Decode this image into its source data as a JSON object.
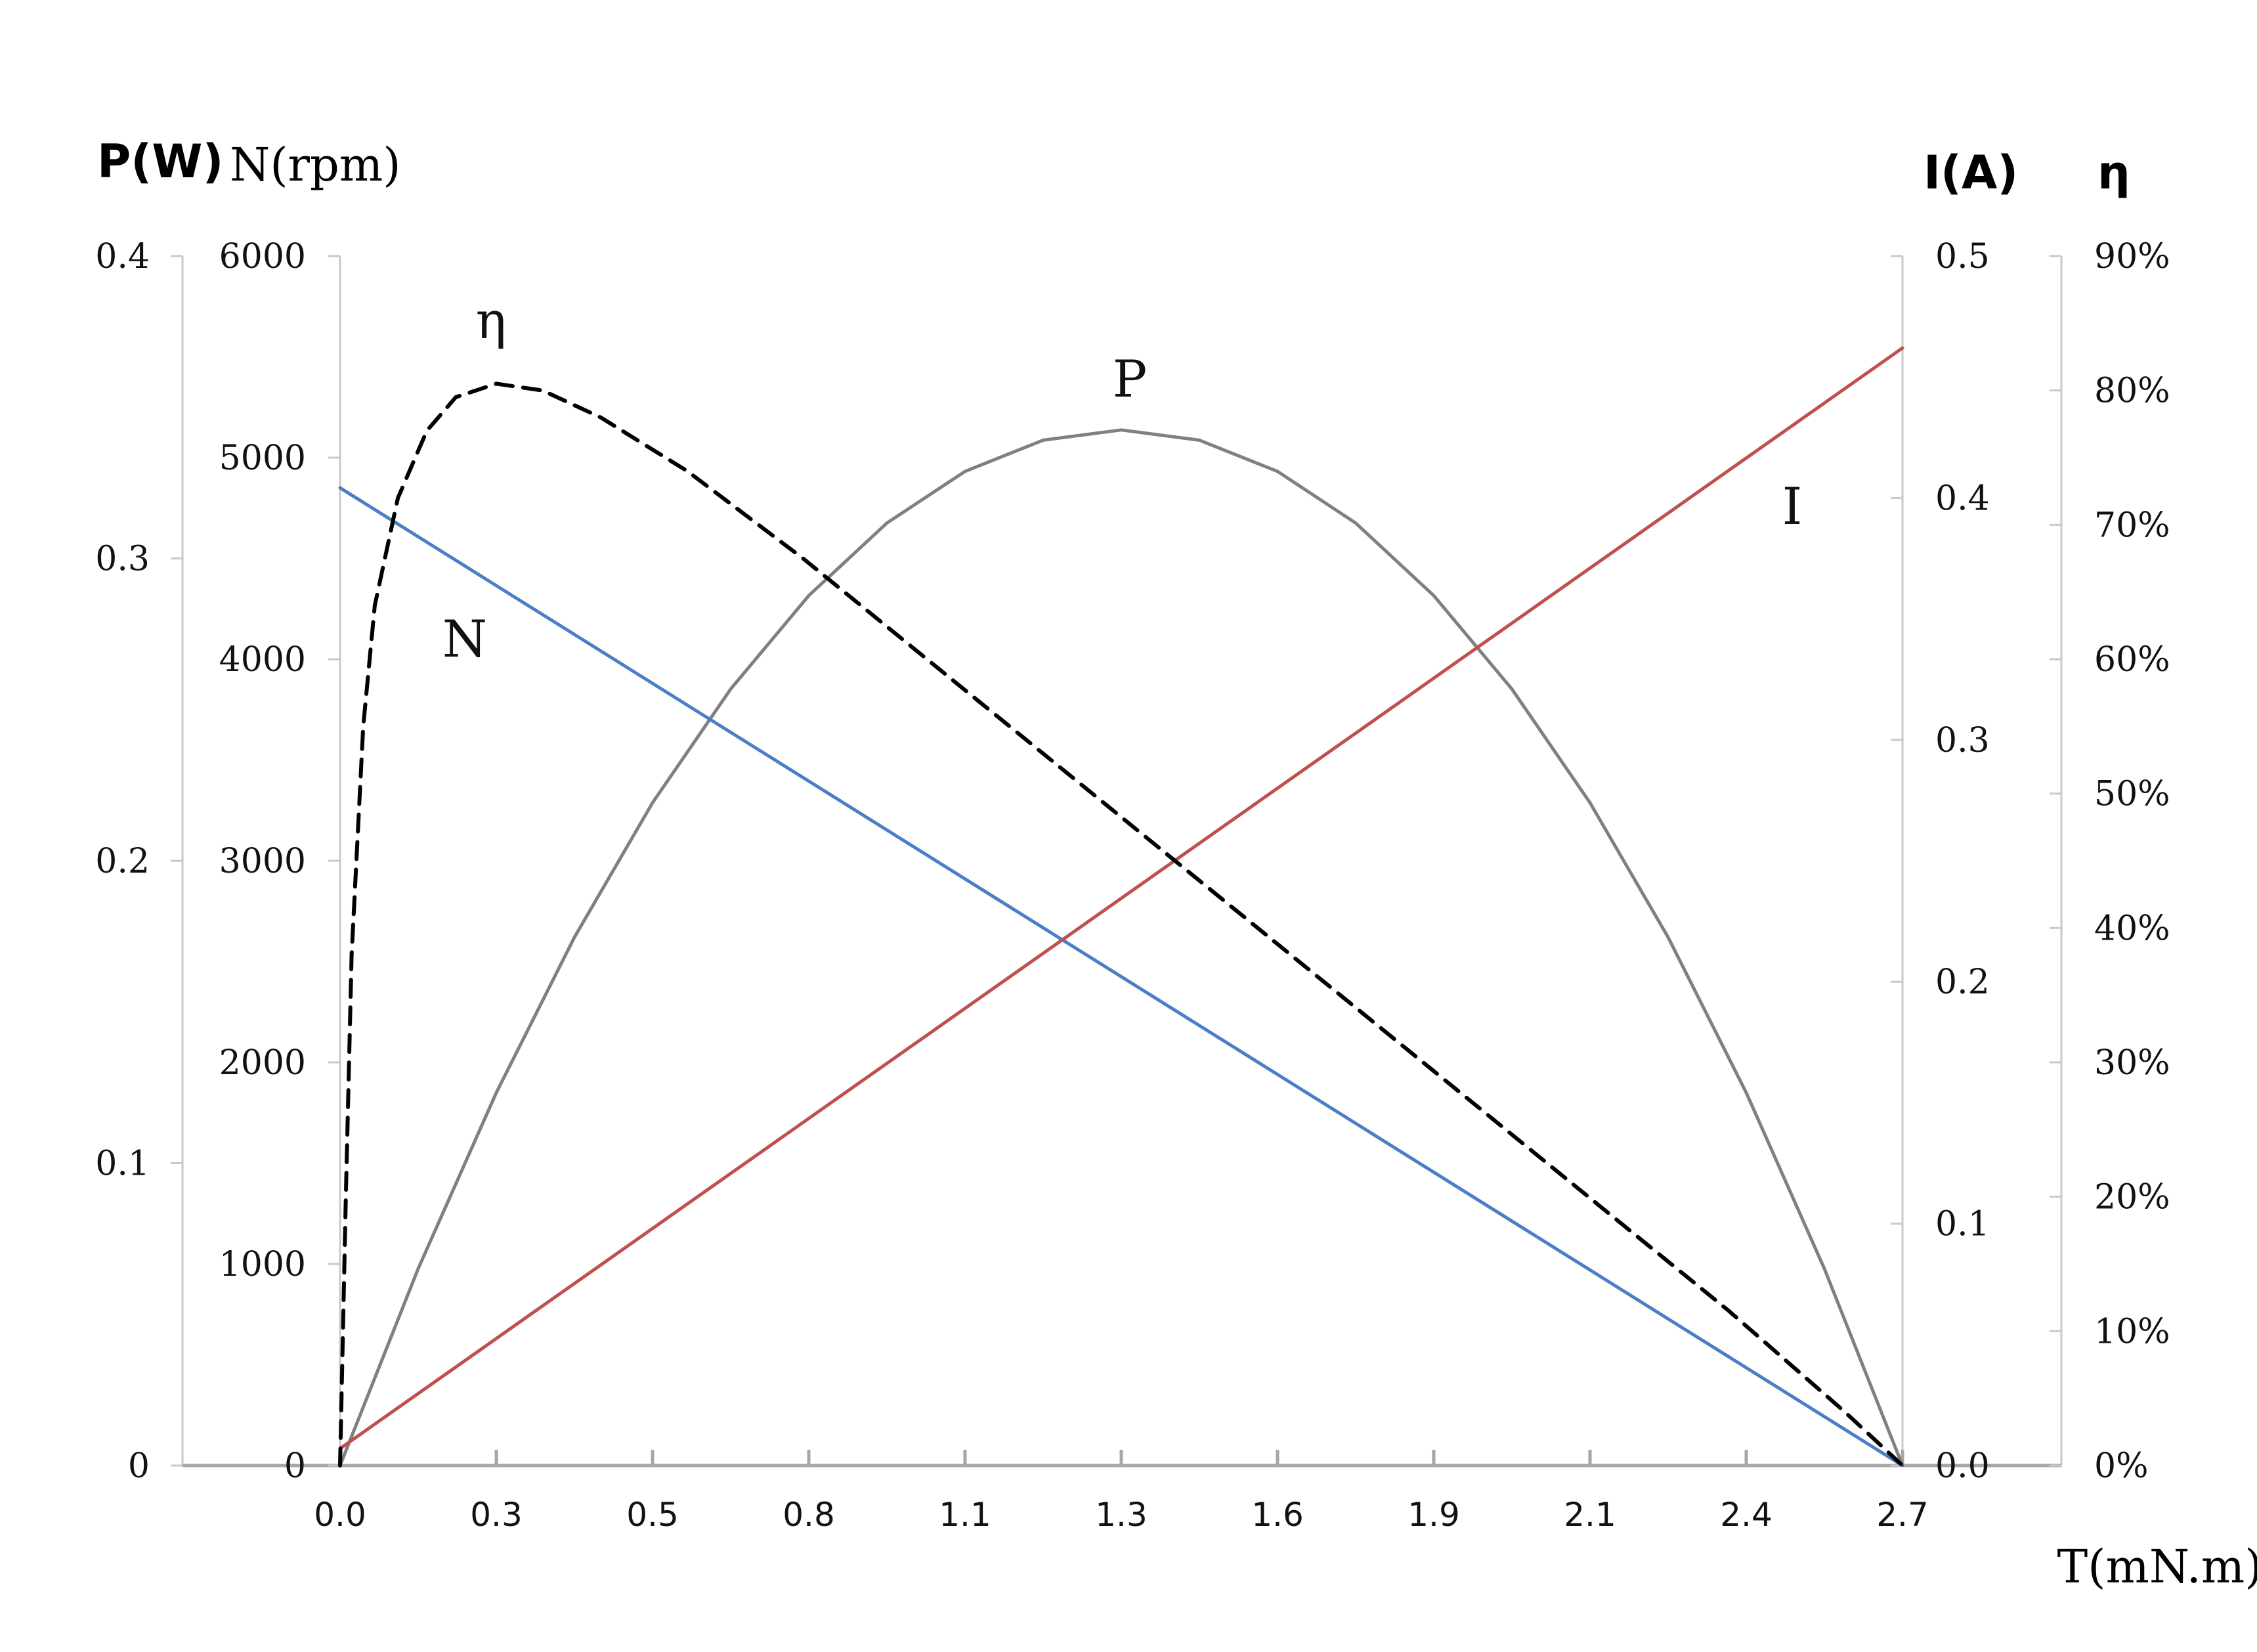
{
  "chart_data": {
    "type": "line",
    "xlabel": "T(mN.m)",
    "x_ticks": [
      "0.0",
      "0.3",
      "0.5",
      "0.8",
      "1.1",
      "1.3",
      "1.6",
      "1.9",
      "2.1",
      "2.4",
      "2.7"
    ],
    "xlim": [
      0,
      2.7
    ],
    "axes": {
      "P": {
        "unit": "P(W)",
        "ylim": [
          0,
          0.4
        ],
        "ticks": [
          "0",
          "0.1",
          "0.2",
          "0.3",
          "0.4"
        ]
      },
      "N": {
        "unit": "N(rpm)",
        "ylim": [
          0,
          6000
        ],
        "ticks": [
          "0",
          "1000",
          "2000",
          "3000",
          "4000",
          "5000",
          "6000"
        ]
      },
      "I": {
        "unit": "I(A)",
        "ylim": [
          0,
          0.5
        ],
        "ticks": [
          "0.0",
          "0.1",
          "0.2",
          "0.3",
          "0.4",
          "0.5"
        ]
      },
      "eta": {
        "unit": "η",
        "ylim": [
          0,
          0.9
        ],
        "ticks": [
          "0%",
          "10%",
          "20%",
          "30%",
          "40%",
          "50%",
          "60%",
          "70%",
          "80%",
          "90%"
        ]
      }
    },
    "series": [
      {
        "name": "N",
        "axis": "N",
        "color": "#4a7ec5",
        "style": "solid",
        "x": [
          0,
          2.7
        ],
        "y": [
          4850,
          0
        ]
      },
      {
        "name": "I",
        "axis": "I",
        "color": "#c0504d",
        "style": "solid",
        "x": [
          0,
          2.7
        ],
        "y": [
          0.007,
          0.462
        ]
      },
      {
        "name": "P",
        "axis": "P",
        "color": "#808080",
        "style": "solid",
        "x": [
          0,
          0.135,
          0.27,
          0.405,
          0.54,
          0.675,
          0.81,
          0.945,
          1.08,
          1.215,
          1.35,
          1.485,
          1.62,
          1.755,
          1.89,
          2.025,
          2.16,
          2.295,
          2.43,
          2.565,
          2.7
        ],
        "y": [
          0,
          0.0651,
          0.1233,
          0.1747,
          0.2192,
          0.2568,
          0.2877,
          0.3117,
          0.3288,
          0.3391,
          0.3425,
          0.3391,
          0.3288,
          0.3117,
          0.2877,
          0.2568,
          0.2192,
          0.1747,
          0.1233,
          0.0651,
          0
        ]
      },
      {
        "name": "η",
        "axis": "eta",
        "color": "#000000",
        "style": "dashed",
        "x": [
          0,
          0.01,
          0.02,
          0.04,
          0.06,
          0.1,
          0.15,
          0.2,
          0.27,
          0.35,
          0.45,
          0.6,
          0.8,
          1.0,
          1.2,
          1.4,
          1.6,
          1.8,
          2.0,
          2.2,
          2.4,
          2.6,
          2.7
        ],
        "y": [
          0,
          0.2,
          0.38,
          0.55,
          0.64,
          0.72,
          0.77,
          0.795,
          0.805,
          0.8,
          0.78,
          0.74,
          0.675,
          0.605,
          0.535,
          0.465,
          0.395,
          0.325,
          0.255,
          0.185,
          0.115,
          0.04,
          0
        ]
      }
    ],
    "curve_labels": [
      "η",
      "P",
      "N",
      "I"
    ],
    "grid": false,
    "legend": "none"
  }
}
